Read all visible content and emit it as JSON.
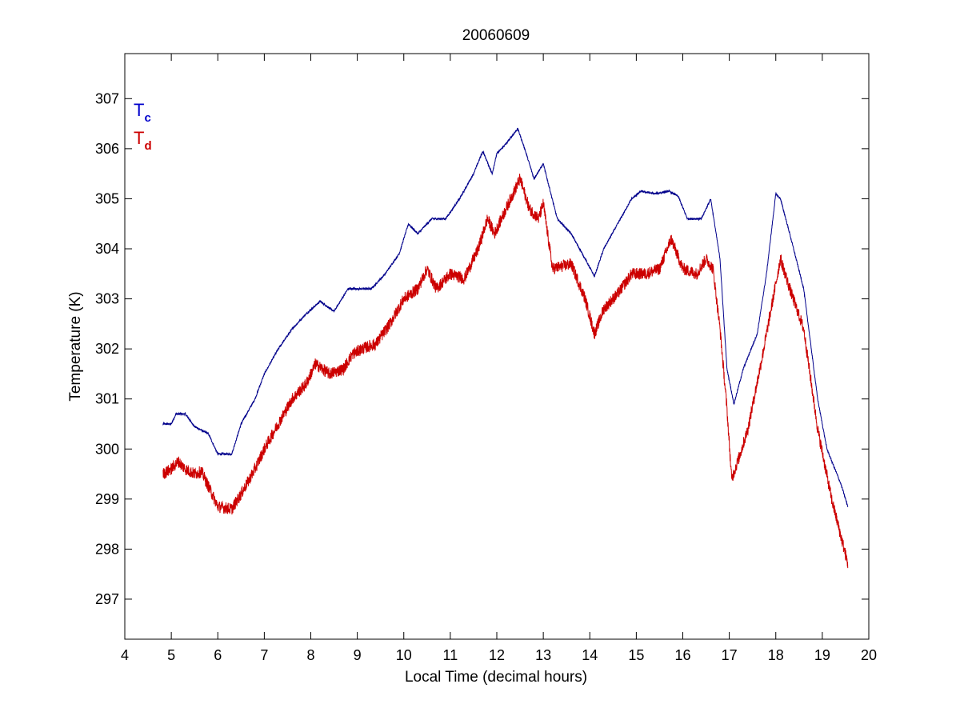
{
  "chart_data": {
    "type": "line",
    "title": "20060609",
    "xlabel": "Local Time (decimal hours)",
    "ylabel": "Temperature (K)",
    "xlim": [
      4,
      20
    ],
    "ylim": [
      296.2,
      307.9
    ],
    "xticks": [
      4,
      5,
      6,
      7,
      8,
      9,
      10,
      11,
      12,
      13,
      14,
      15,
      16,
      17,
      18,
      19,
      20
    ],
    "yticks": [
      297,
      298,
      299,
      300,
      301,
      302,
      303,
      304,
      305,
      306,
      307
    ],
    "grid": false,
    "legend_position": "top-left",
    "series": [
      {
        "name": "Tc",
        "legend_main": "T",
        "legend_sub": "c",
        "color": "#00008b",
        "noise": 0.02,
        "x": [
          4.82,
          5.0,
          5.1,
          5.3,
          5.5,
          5.8,
          6.0,
          6.3,
          6.5,
          6.8,
          7.0,
          7.3,
          7.6,
          7.9,
          8.2,
          8.5,
          8.8,
          9.0,
          9.3,
          9.6,
          9.9,
          10.1,
          10.3,
          10.6,
          10.9,
          11.2,
          11.5,
          11.7,
          11.9,
          12.0,
          12.2,
          12.45,
          12.6,
          12.8,
          13.0,
          13.3,
          13.6,
          13.9,
          14.1,
          14.3,
          14.6,
          14.9,
          15.1,
          15.4,
          15.7,
          15.9,
          16.1,
          16.4,
          16.6,
          16.8,
          16.95,
          17.1,
          17.3,
          17.6,
          17.8,
          18.0,
          18.1,
          18.3,
          18.6,
          18.9,
          19.1,
          19.4,
          19.55
        ],
        "y": [
          300.5,
          300.5,
          300.7,
          300.7,
          300.45,
          300.3,
          299.9,
          299.9,
          300.5,
          301.0,
          301.5,
          302.0,
          302.4,
          302.7,
          302.95,
          302.75,
          303.2,
          303.2,
          303.2,
          303.5,
          303.9,
          304.5,
          304.3,
          304.6,
          304.6,
          305.0,
          305.5,
          305.95,
          305.5,
          305.9,
          306.1,
          306.4,
          306.0,
          305.4,
          305.7,
          304.6,
          304.3,
          303.8,
          303.45,
          304.0,
          304.5,
          305.0,
          305.15,
          305.1,
          305.15,
          305.05,
          304.6,
          304.6,
          305.0,
          303.8,
          301.6,
          300.9,
          301.6,
          302.3,
          303.5,
          305.1,
          305.0,
          304.3,
          303.2,
          301.0,
          300.0,
          299.3,
          298.85
        ]
      },
      {
        "name": "Td",
        "legend_main": "T",
        "legend_sub": "d",
        "color": "#cc0000",
        "noise": 0.12,
        "x": [
          4.82,
          5.0,
          5.15,
          5.3,
          5.5,
          5.65,
          5.8,
          6.0,
          6.3,
          6.5,
          6.8,
          7.0,
          7.3,
          7.6,
          7.9,
          8.1,
          8.4,
          8.7,
          8.9,
          9.1,
          9.4,
          9.7,
          10.0,
          10.3,
          10.5,
          10.7,
          11.0,
          11.3,
          11.6,
          11.8,
          11.95,
          12.2,
          12.5,
          12.7,
          12.9,
          13.0,
          13.2,
          13.6,
          13.9,
          14.1,
          14.3,
          14.6,
          14.9,
          15.2,
          15.5,
          15.75,
          16.0,
          16.3,
          16.5,
          16.65,
          16.8,
          16.95,
          17.05,
          17.2,
          17.4,
          17.7,
          17.9,
          18.1,
          18.3,
          18.6,
          18.9,
          19.2,
          19.55
        ],
        "y": [
          299.5,
          299.6,
          299.75,
          299.6,
          299.5,
          299.55,
          299.25,
          298.85,
          298.8,
          299.1,
          299.6,
          300.0,
          300.5,
          301.0,
          301.3,
          301.7,
          301.5,
          301.6,
          301.9,
          302.0,
          302.1,
          302.5,
          303.0,
          303.2,
          303.6,
          303.2,
          303.5,
          303.4,
          304.0,
          304.6,
          304.3,
          304.8,
          305.4,
          304.8,
          304.6,
          304.9,
          303.6,
          303.7,
          303.0,
          302.3,
          302.8,
          303.1,
          303.5,
          303.5,
          303.6,
          304.2,
          303.6,
          303.5,
          303.8,
          303.6,
          302.4,
          300.8,
          299.4,
          299.8,
          300.4,
          301.8,
          302.8,
          303.8,
          303.2,
          302.4,
          300.4,
          299.0,
          297.7
        ]
      }
    ]
  }
}
